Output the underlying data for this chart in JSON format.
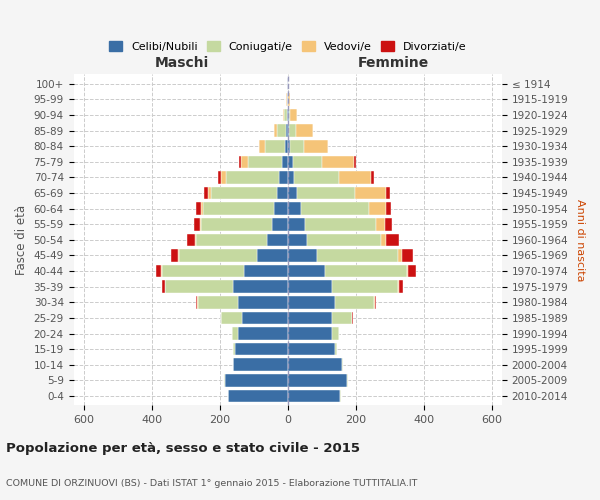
{
  "age_groups": [
    "0-4",
    "5-9",
    "10-14",
    "15-19",
    "20-24",
    "25-29",
    "30-34",
    "35-39",
    "40-44",
    "45-49",
    "50-54",
    "55-59",
    "60-64",
    "65-69",
    "70-74",
    "75-79",
    "80-84",
    "85-89",
    "90-94",
    "95-99",
    "100+"
  ],
  "birth_years": [
    "2010-2014",
    "2005-2009",
    "2000-2004",
    "1995-1999",
    "1990-1994",
    "1985-1989",
    "1980-1984",
    "1975-1979",
    "1970-1974",
    "1965-1969",
    "1960-1964",
    "1955-1959",
    "1950-1954",
    "1945-1949",
    "1940-1944",
    "1935-1939",
    "1930-1934",
    "1925-1929",
    "1920-1924",
    "1915-1919",
    "≤ 1914"
  ],
  "maschi": {
    "celibi": [
      175,
      185,
      160,
      155,
      145,
      135,
      145,
      160,
      130,
      90,
      60,
      45,
      40,
      30,
      27,
      18,
      8,
      5,
      2,
      1,
      1
    ],
    "coniugati": [
      1,
      2,
      1,
      5,
      20,
      60,
      120,
      200,
      240,
      230,
      210,
      210,
      210,
      195,
      155,
      100,
      60,
      25,
      8,
      2,
      0
    ],
    "vedovi": [
      0,
      0,
      0,
      0,
      0,
      0,
      1,
      1,
      2,
      2,
      2,
      2,
      5,
      10,
      15,
      20,
      15,
      10,
      5,
      1,
      0
    ],
    "divorziati": [
      0,
      0,
      0,
      0,
      0,
      1,
      3,
      8,
      15,
      22,
      25,
      20,
      15,
      12,
      8,
      5,
      2,
      0,
      0,
      0,
      0
    ]
  },
  "femmine": {
    "nubili": [
      155,
      175,
      160,
      140,
      130,
      130,
      140,
      130,
      110,
      85,
      58,
      50,
      38,
      28,
      20,
      15,
      8,
      5,
      3,
      1,
      1
    ],
    "coniugate": [
      1,
      1,
      2,
      5,
      20,
      60,
      115,
      195,
      240,
      240,
      215,
      210,
      200,
      170,
      130,
      85,
      40,
      20,
      5,
      1,
      0
    ],
    "vedove": [
      0,
      0,
      0,
      0,
      0,
      0,
      1,
      3,
      5,
      10,
      15,
      25,
      50,
      90,
      95,
      95,
      70,
      50,
      20,
      5,
      0
    ],
    "divorziate": [
      0,
      0,
      0,
      0,
      1,
      2,
      5,
      12,
      22,
      35,
      40,
      22,
      15,
      12,
      10,
      5,
      2,
      0,
      0,
      0,
      0
    ]
  },
  "colors": {
    "celibi": "#3a6ea5",
    "coniugati": "#c5d9a0",
    "vedovi": "#f5c478",
    "divorziati": "#cc1111"
  },
  "title": "Popolazione per età, sesso e stato civile - 2015",
  "subtitle": "COMUNE DI ORZINUOVI (BS) - Dati ISTAT 1° gennaio 2015 - Elaborazione TUTTITALIA.IT",
  "xlabel_left": "Maschi",
  "xlabel_right": "Femmine",
  "ylabel_left": "Fasce di età",
  "ylabel_right": "Anni di nascita",
  "xlim": 630,
  "xticks": [
    -600,
    -400,
    -200,
    0,
    200,
    400,
    600
  ],
  "legend_labels": [
    "Celibi/Nubili",
    "Coniugati/e",
    "Vedovi/e",
    "Divorziati/e"
  ],
  "background_color": "#f5f5f5",
  "plot_bg": "#ffffff"
}
